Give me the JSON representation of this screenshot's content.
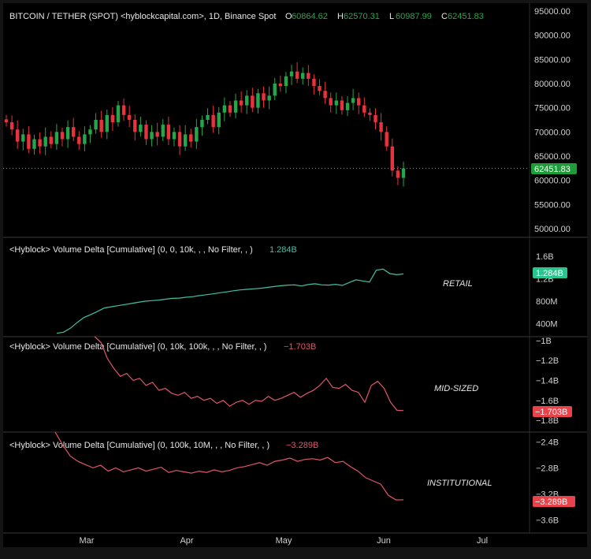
{
  "header": {
    "title": "BITCOIN / TETHER (SPOT) <hyblockcapital.com>, 1D, Binance Spot",
    "ohlc": [
      {
        "key": "O",
        "value": "60864.62"
      },
      {
        "key": "H",
        "value": "62570.31"
      },
      {
        "key": "L",
        "value": "60987.99"
      },
      {
        "key": "C",
        "value": "62451.83"
      }
    ]
  },
  "colors": {
    "background": "#000000",
    "frame": "#141414",
    "up": "#26a64a",
    "down": "#e8323c",
    "retail_line": "#3fc3a4",
    "mid_line": "#e0566a",
    "inst_line": "#e0566a",
    "last_price_badge": "#1f9c3a",
    "retail_badge": "#2bc48f",
    "neg_badge": "#e8434b",
    "axis_text": "#d0d0d0",
    "divider": "#3a3a3a"
  },
  "chart_data": [
    {
      "type": "candlestick",
      "title": "BITCOIN / TETHER (SPOT) <hyblockcapital.com>, 1D, Binance Spot",
      "x_ticks": [
        "Mar",
        "Apr",
        "May",
        "Jun",
        "Jul"
      ],
      "y_ticks": [
        "95000.00",
        "90000.00",
        "85000.00",
        "80000.00",
        "75000.00",
        "70000.00",
        "65000.00",
        "60000.00",
        "55000.00",
        "50000.00"
      ],
      "ylim": [
        48000,
        96000
      ],
      "last_price_label": "62451.83",
      "last_price": 62451.83,
      "close_path": [
        72000,
        70500,
        68000,
        69500,
        66500,
        68500,
        67000,
        69000,
        67500,
        70000,
        68500,
        71000,
        69000,
        67500,
        69500,
        70500,
        72500,
        70000,
        73500,
        72000,
        75500,
        73500,
        72500,
        70000,
        71500,
        68500,
        70000,
        69000,
        71500,
        68500,
        70000,
        67000,
        69500,
        68000,
        71000,
        72500,
        73500,
        71000,
        74000,
        75500,
        74000,
        76500,
        75500,
        77500,
        75000,
        78000,
        76500,
        77500,
        80000,
        79500,
        81500,
        82500,
        81000,
        82200,
        81000,
        79500,
        78500,
        77000,
        75500,
        76500,
        74500,
        76000,
        77000,
        75500,
        74000,
        73500,
        72000,
        70000,
        67000,
        62000,
        60500,
        62451.83
      ]
    },
    {
      "type": "line",
      "title": "<Hyblock> Volume Delta [Cumulative] (0, 0, 10k, , , No Filter, , )",
      "value_label": "1.284B",
      "annotation": "RETAIL",
      "y_ticks": [
        "1.6B",
        "1.2B",
        "800M",
        "400M"
      ],
      "ylim": [
        240,
        1780
      ],
      "unit": "M",
      "values": [
        230,
        250,
        320,
        420,
        510,
        560,
        620,
        680,
        700,
        720,
        740,
        760,
        780,
        800,
        810,
        820,
        835,
        850,
        855,
        870,
        880,
        900,
        915,
        930,
        950,
        965,
        985,
        1000,
        1010,
        1020,
        1030,
        1045,
        1060,
        1075,
        1085,
        1090,
        1070,
        1095,
        1110,
        1090,
        1085,
        1100,
        1080,
        1130,
        1180,
        1160,
        1140,
        1350,
        1370,
        1290,
        1270,
        1284
      ]
    },
    {
      "type": "line",
      "title": "<Hyblock> Volume Delta [Cumulative] (0, 10k, 100k, , , No Filter, , )",
      "value_label": "−1.703B",
      "annotation": "MID-SIZED",
      "y_ticks": [
        "−1B",
        "−1.2B",
        "−1.4B",
        "−1.6B",
        "−1.8B"
      ],
      "ylim": [
        -1.855,
        -0.985
      ],
      "unit": "B",
      "values": [
        -0.96,
        -1.02,
        -1.18,
        -1.28,
        -1.36,
        -1.33,
        -1.4,
        -1.38,
        -1.45,
        -1.42,
        -1.5,
        -1.48,
        -1.53,
        -1.55,
        -1.52,
        -1.58,
        -1.56,
        -1.6,
        -1.58,
        -1.63,
        -1.6,
        -1.66,
        -1.62,
        -1.6,
        -1.64,
        -1.6,
        -1.61,
        -1.56,
        -1.6,
        -1.58,
        -1.55,
        -1.52,
        -1.57,
        -1.53,
        -1.5,
        -1.45,
        -1.38,
        -1.47,
        -1.48,
        -1.44,
        -1.5,
        -1.52,
        -1.62,
        -1.45,
        -1.41,
        -1.48,
        -1.62,
        -1.7,
        -1.703
      ]
    },
    {
      "type": "line",
      "title": "<Hyblock> Volume Delta [Cumulative] (0, 100k, 10M, , , No Filter, , )",
      "value_label": "−3.289B",
      "annotation": "INSTITUTIONAL",
      "y_ticks": [
        "−2.4B",
        "−2.8B",
        "−3.2B",
        "−3.6B"
      ],
      "ylim": [
        -3.7,
        -2.3
      ],
      "unit": "B",
      "values": [
        -2.25,
        -2.45,
        -2.62,
        -2.7,
        -2.75,
        -2.8,
        -2.76,
        -2.85,
        -2.8,
        -2.86,
        -2.83,
        -2.8,
        -2.85,
        -2.82,
        -2.79,
        -2.87,
        -2.84,
        -2.86,
        -2.88,
        -2.85,
        -2.87,
        -2.83,
        -2.86,
        -2.84,
        -2.8,
        -2.78,
        -2.75,
        -2.72,
        -2.76,
        -2.7,
        -2.68,
        -2.65,
        -2.7,
        -2.67,
        -2.66,
        -2.68,
        -2.64,
        -2.72,
        -2.7,
        -2.78,
        -2.85,
        -2.95,
        -3.0,
        -3.05,
        -3.22,
        -3.29,
        -3.289
      ]
    }
  ]
}
